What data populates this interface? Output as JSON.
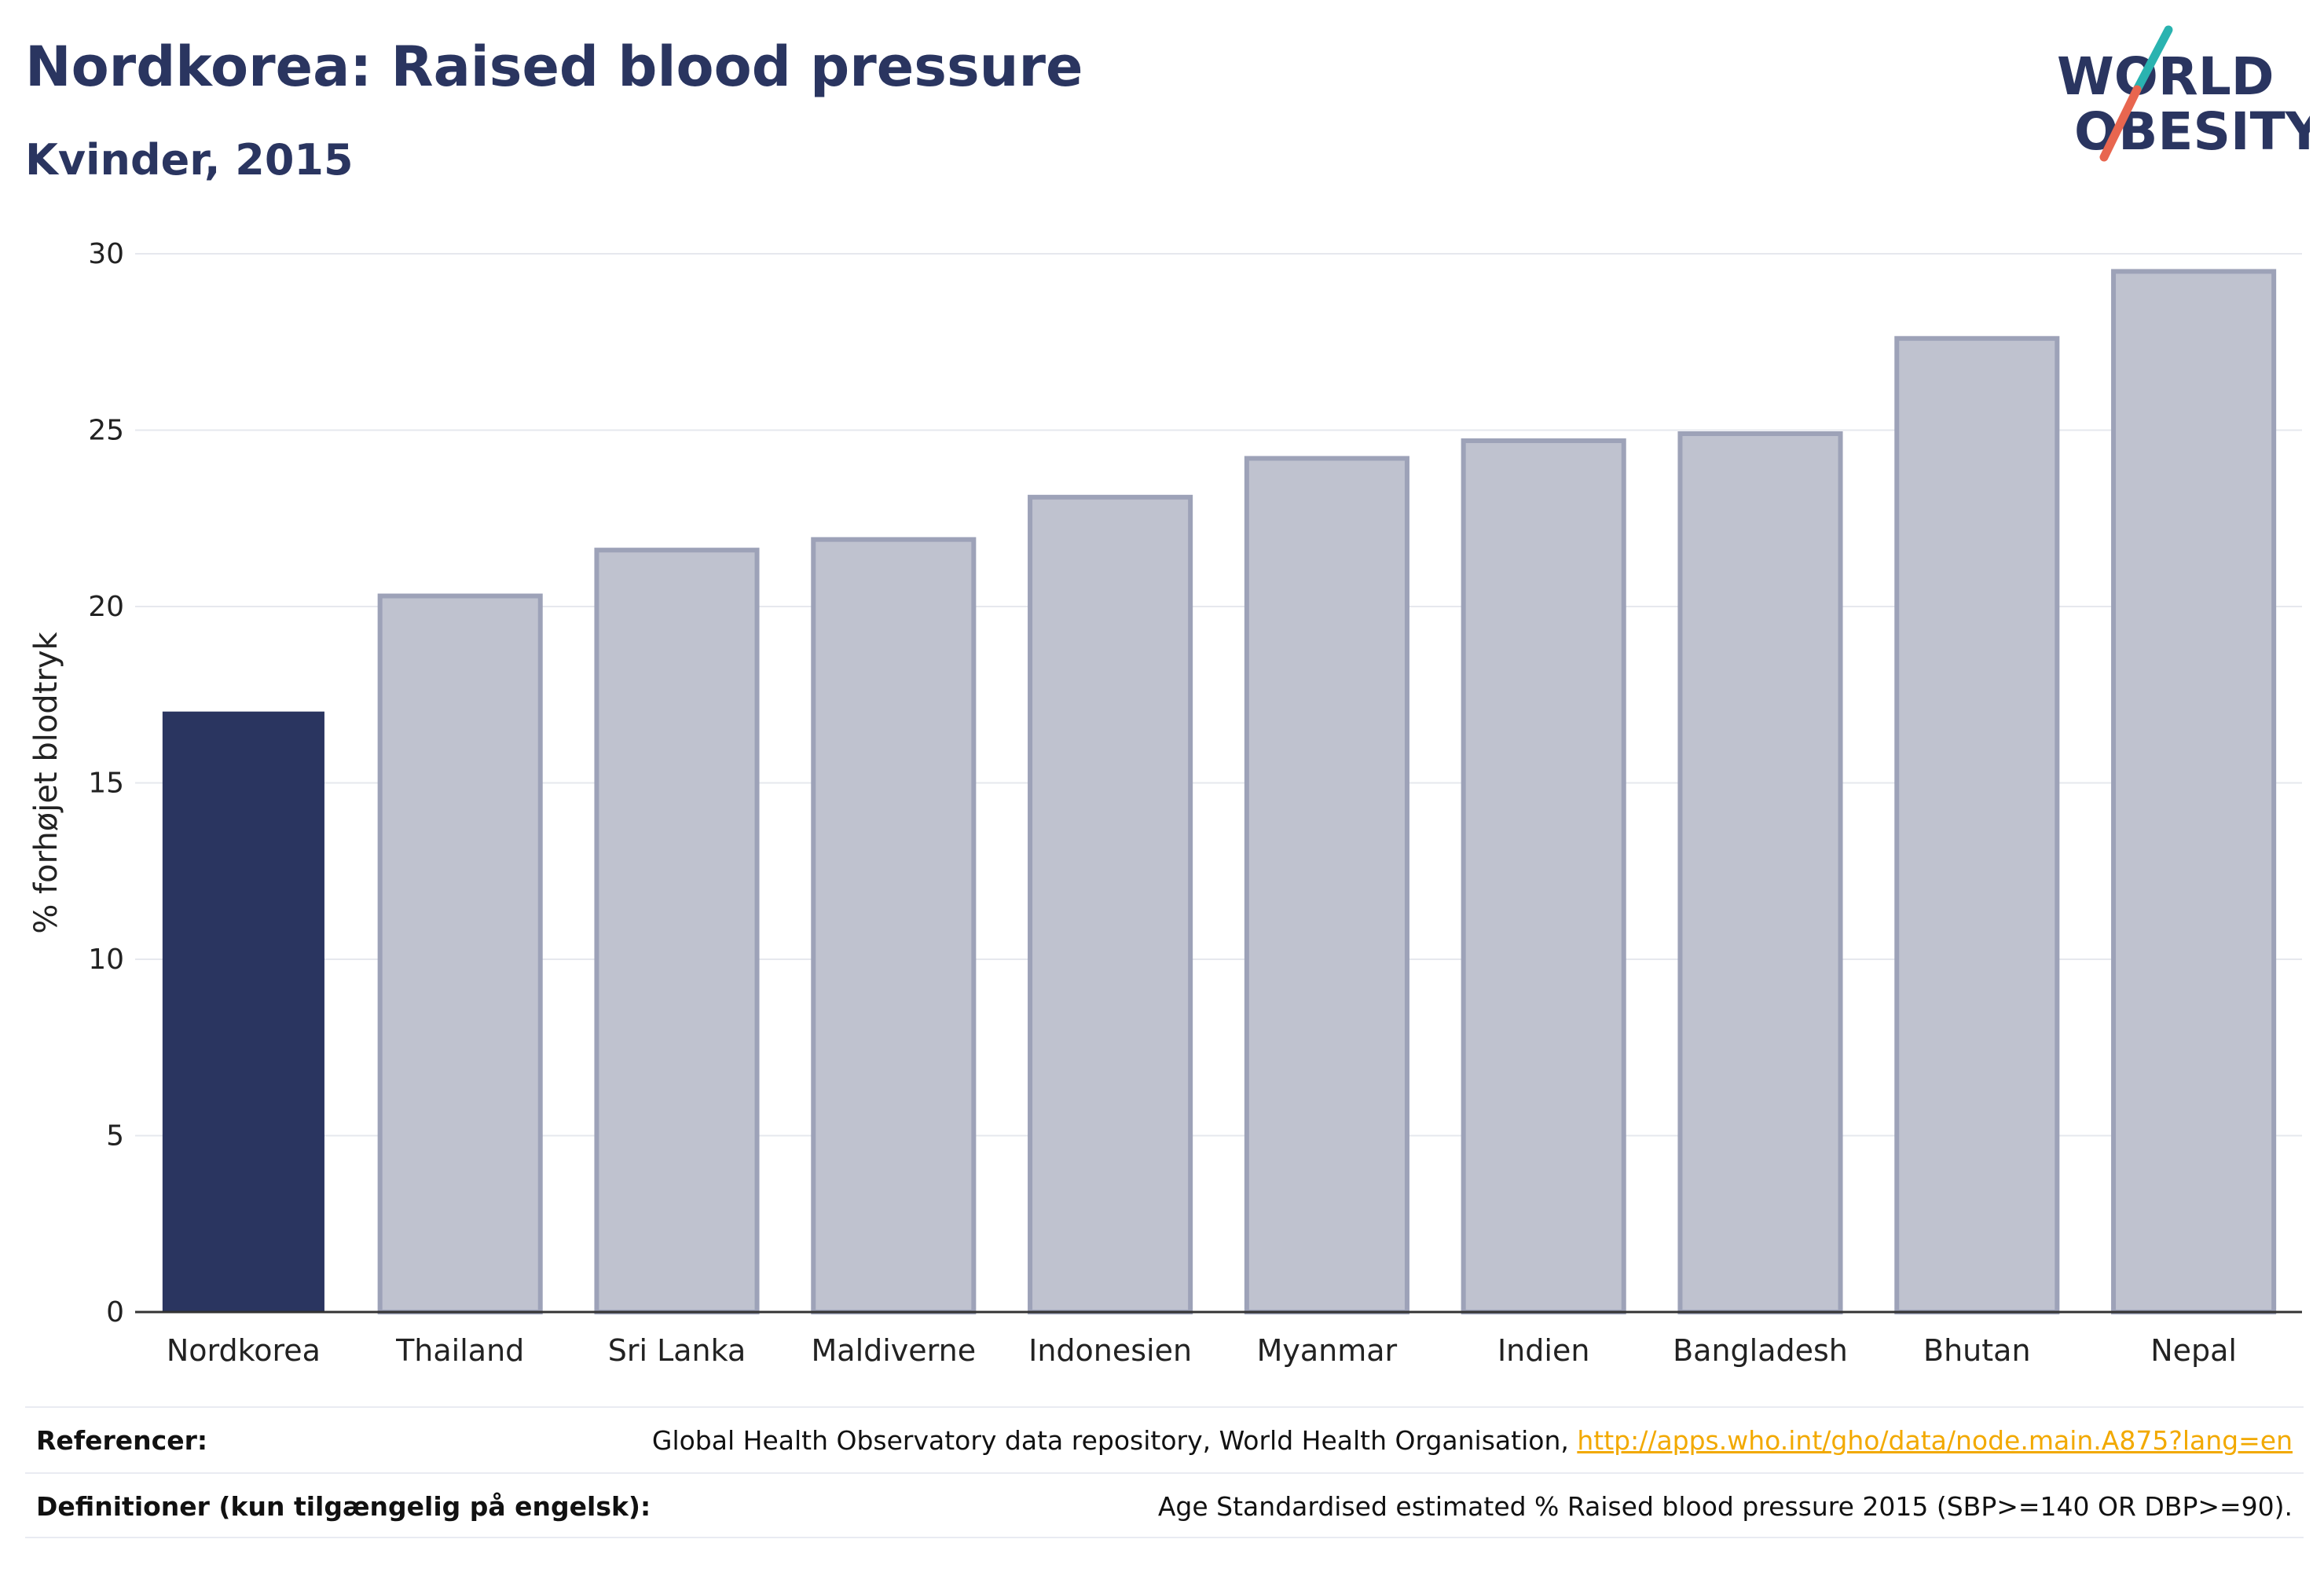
{
  "header": {
    "title": "Nordkorea: Raised blood pressure",
    "subtitle": "Kvinder, 2015"
  },
  "logo": {
    "line1": "WORLD",
    "line2": "OBESITY",
    "colors": {
      "text": "#2a3560",
      "slash_top": "#2ab3b0",
      "slash_bottom": "#e8664f"
    }
  },
  "chart_data": {
    "type": "bar",
    "categories": [
      "Nordkorea",
      "Thailand",
      "Sri Lanka",
      "Maldiverne",
      "Indonesien",
      "Myanmar",
      "Indien",
      "Bangladesh",
      "Bhutan",
      "Nepal"
    ],
    "values": [
      17.0,
      20.3,
      21.6,
      21.9,
      23.1,
      24.2,
      24.7,
      24.9,
      27.6,
      29.5
    ],
    "highlight_index": 0,
    "ylabel": "% forhøjet blodtryk",
    "ylim": [
      0,
      30
    ],
    "yticks": [
      0,
      5,
      10,
      15,
      20,
      25,
      30
    ],
    "grid": true,
    "colors": {
      "highlight": "#2a3560",
      "other_fill": "#bfc2cf",
      "other_stroke": "#9da2b8",
      "grid": "#e6e8ee",
      "axis": "#333333"
    }
  },
  "footer": {
    "references_label": "Referencer:",
    "references_text": "Global Health Observatory data repository, World Health Organisation, ",
    "references_link": "http://apps.who.int/gho/data/node.main.A875?lang=en",
    "definitions_label": "Definitioner (kun tilgængelig på engelsk):",
    "definitions_text": "Age Standardised estimated % Raised blood pressure 2015 (SBP>=140 OR DBP>=90)."
  }
}
